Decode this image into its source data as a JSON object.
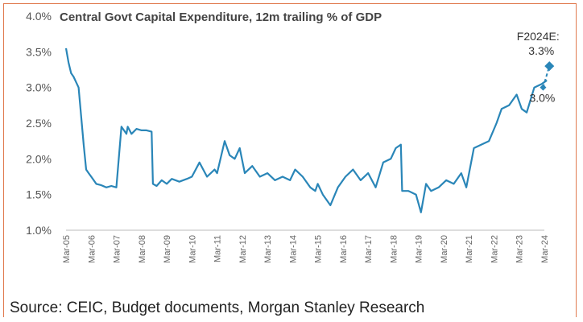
{
  "source": "Source: CEIC, Budget documents, Morgan Stanley Research",
  "chart_data": {
    "type": "line",
    "title": "Central Govt Capital Expenditure, 12m trailing % of GDP",
    "xlabel": "",
    "ylabel": "",
    "ylim": [
      1.0,
      4.0
    ],
    "yticks": [
      "4.0%",
      "3.5%",
      "3.0%",
      "2.5%",
      "2.0%",
      "1.5%",
      "1.0%"
    ],
    "xticks": [
      "Mar-05",
      "Mar-06",
      "Mar-07",
      "Mar-08",
      "Mar-09",
      "Mar-10",
      "Mar-11",
      "Mar-12",
      "Mar-13",
      "Mar-14",
      "Mar-15",
      "Mar-16",
      "Mar-17",
      "Mar-18",
      "Mar-19",
      "Mar-20",
      "Mar-21",
      "Mar-22",
      "Mar-23",
      "Mar-24"
    ],
    "grid": false,
    "colors": {
      "line": "#2a86b8",
      "frame": "#e07a4f"
    },
    "series": [
      {
        "x": [
          2005.0,
          2005.1,
          2005.2,
          2005.3,
          2005.5,
          2005.7,
          2005.8,
          2005.9,
          2006.0,
          2006.1,
          2006.2,
          2006.4,
          2006.6,
          2006.8,
          2007.0,
          2007.2,
          2007.4,
          2007.45,
          2007.6,
          2007.8,
          2008.0,
          2008.2,
          2008.4,
          2008.45,
          2008.6,
          2008.8,
          2009.0,
          2009.2,
          2009.5,
          2009.8,
          2010.0,
          2010.3,
          2010.6,
          2010.9,
          2011.0,
          2011.3,
          2011.5,
          2011.7,
          2011.9,
          2012.1,
          2012.4,
          2012.7,
          2013.0,
          2013.3,
          2013.6,
          2013.9,
          2014.1,
          2014.4,
          2014.7,
          2014.9,
          2015.0,
          2015.2,
          2015.5,
          2015.8,
          2016.1,
          2016.4,
          2016.7,
          2017.0,
          2017.3,
          2017.6,
          2017.9,
          2018.1,
          2018.3,
          2018.35,
          2018.6,
          2018.9,
          2019.1,
          2019.3,
          2019.5,
          2019.8,
          2020.1,
          2020.4,
          2020.7,
          2020.9,
          2021.2,
          2021.5,
          2021.8,
          2022.1,
          2022.3,
          2022.6,
          2022.9,
          2023.1,
          2023.3,
          2023.6,
          2023.9,
          2024.1
        ],
        "values": [
          3.55,
          3.35,
          3.2,
          3.15,
          3.0,
          2.2,
          1.85,
          1.8,
          1.75,
          1.7,
          1.65,
          1.63,
          1.6,
          1.62,
          1.6,
          2.45,
          2.35,
          2.45,
          2.35,
          2.42,
          2.4,
          2.4,
          2.38,
          1.65,
          1.62,
          1.7,
          1.65,
          1.72,
          1.68,
          1.72,
          1.75,
          1.95,
          1.75,
          1.85,
          1.8,
          2.25,
          2.05,
          2.0,
          2.15,
          1.8,
          1.9,
          1.75,
          1.8,
          1.7,
          1.75,
          1.7,
          1.85,
          1.75,
          1.6,
          1.55,
          1.65,
          1.5,
          1.35,
          1.6,
          1.75,
          1.85,
          1.7,
          1.8,
          1.6,
          1.95,
          2.0,
          2.15,
          2.2,
          1.55,
          1.55,
          1.5,
          1.25,
          1.65,
          1.55,
          1.6,
          1.7,
          1.65,
          1.8,
          1.6,
          2.15,
          2.2,
          2.25,
          2.5,
          2.7,
          2.75,
          2.9,
          2.7,
          2.65,
          3.0,
          3.05,
          3.1
        ]
      }
    ],
    "annotations": [
      {
        "label": "F2024E:",
        "value_label": "3.3%",
        "x": 2024.2,
        "y": 3.3
      },
      {
        "label": "3.0%",
        "x": 2023.95,
        "y": 3.0
      }
    ]
  }
}
